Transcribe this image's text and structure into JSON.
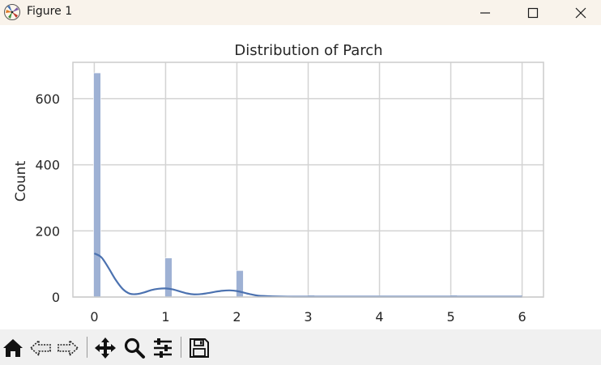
{
  "window": {
    "title": "Figure 1",
    "icons": {
      "app": "matplotlib-figure-icon",
      "minimize": "minimize-icon",
      "maximize": "maximize-icon",
      "close": "close-icon"
    }
  },
  "toolbar": {
    "tools": [
      {
        "name": "home",
        "icon": "home-icon"
      },
      {
        "name": "back",
        "icon": "back-arrow-icon"
      },
      {
        "name": "forward",
        "icon": "forward-arrow-icon"
      },
      {
        "name": "pan",
        "icon": "move-icon"
      },
      {
        "name": "zoom",
        "icon": "zoom-icon"
      },
      {
        "name": "configure-subplots",
        "icon": "sliders-icon"
      },
      {
        "name": "save",
        "icon": "save-icon"
      }
    ]
  },
  "chart_data": {
    "type": "bar",
    "title": "Distribution of Parch",
    "xlabel": "",
    "ylabel": "Count",
    "xlim": [
      -0.3,
      6.3
    ],
    "ylim": [
      0,
      710
    ],
    "x_ticks": [
      0,
      1,
      2,
      3,
      4,
      5,
      6
    ],
    "y_ticks": [
      0,
      200,
      400,
      600
    ],
    "bin_width": 0.1,
    "bars": [
      {
        "x": 0,
        "count": 678
      },
      {
        "x": 1,
        "count": 118
      },
      {
        "x": 2,
        "count": 80
      },
      {
        "x": 3,
        "count": 5
      },
      {
        "x": 4,
        "count": 4
      },
      {
        "x": 5,
        "count": 5
      },
      {
        "x": 6,
        "count": 1
      }
    ],
    "kde": {
      "x": [
        0,
        0.1,
        0.2,
        0.3,
        0.4,
        0.5,
        0.6,
        0.7,
        0.8,
        0.9,
        1.0,
        1.1,
        1.2,
        1.3,
        1.4,
        1.5,
        1.6,
        1.7,
        1.8,
        1.9,
        2.0,
        2.1,
        2.2,
        2.3,
        2.5,
        2.8,
        3.2,
        4.0,
        5.0,
        6.0
      ],
      "y": [
        132,
        120,
        88,
        52,
        24,
        10,
        9,
        14,
        21,
        25,
        26,
        23,
        17,
        11,
        8,
        9,
        12,
        16,
        19,
        20,
        18,
        13,
        8,
        4,
        2,
        1,
        1,
        1,
        1,
        1
      ]
    },
    "grid": true,
    "legend": "none",
    "colors": {
      "bar": "#9eb1d4",
      "bar_edge": "#ffffff",
      "kde_line": "#4c72b0",
      "grid": "#d3d3d3",
      "axes_edge": "#cccccc"
    }
  }
}
